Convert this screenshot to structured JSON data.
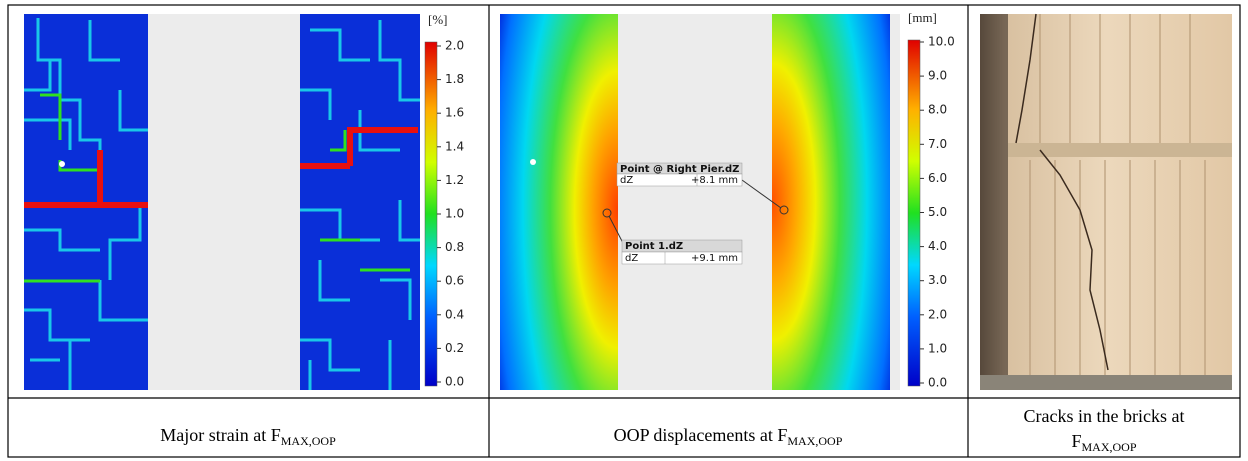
{
  "panels": [
    {
      "colorbar": {
        "unit": "[%]",
        "ticks": [
          "2.0",
          "1.8",
          "1.6",
          "1.4",
          "1.2",
          "1.0",
          "0.8",
          "0.6",
          "0.4",
          "0.2",
          "0.0"
        ]
      },
      "caption": {
        "text": "Major strain at F",
        "subscript": "MAX,OOP"
      }
    },
    {
      "colorbar": {
        "unit": "[mm]",
        "ticks": [
          "10.0",
          "9.0",
          "8.0",
          "7.0",
          "6.0",
          "5.0",
          "4.0",
          "3.0",
          "2.0",
          "1.0",
          "0.0"
        ]
      },
      "annotations": [
        {
          "title": "Point @ Right Pier.dZ",
          "label": "dZ",
          "value": "+8.1 mm"
        },
        {
          "title": "Point 1.dZ",
          "label": "dZ",
          "value": "+9.1 mm"
        }
      ],
      "caption": {
        "text": "OOP displacements at F",
        "subscript": "MAX,OOP"
      }
    },
    {
      "caption": {
        "lines": [
          "Cracks in the bricks at",
          "F"
        ],
        "subscript": "MAX,OOP"
      }
    }
  ]
}
